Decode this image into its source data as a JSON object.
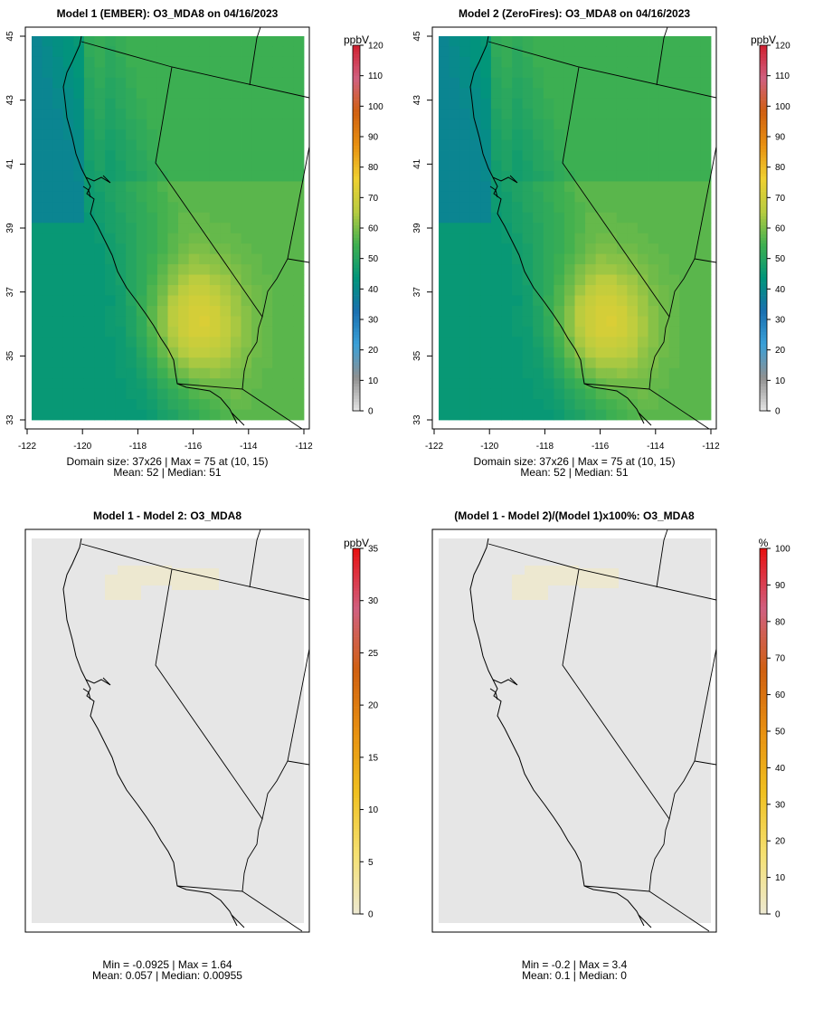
{
  "chart_data": [
    {
      "type": "heatmap",
      "title": "Model 1 (EMBER): O3_MDA8 on 04/16/2023",
      "x_ticks": [
        "-122",
        "-120",
        "-118",
        "-116",
        "-114",
        "-112"
      ],
      "y_ticks": [
        "33",
        "35",
        "37",
        "39",
        "41",
        "43",
        "45"
      ],
      "xlim": [
        -122,
        -112
      ],
      "ylim": [
        33,
        45
      ],
      "grid_size": [
        37,
        26
      ],
      "colorbar": {
        "unit": "ppbV",
        "ticks": [
          "0",
          "10",
          "20",
          "30",
          "40",
          "50",
          "60",
          "70",
          "80",
          "90",
          "100",
          "110",
          "120"
        ],
        "range": [
          0,
          120
        ]
      },
      "stats": [
        "Domain size: 37x26 | Max = 75 at (10, 15)",
        "Mean: 52 |  Median: 51"
      ],
      "field": {
        "background": 45,
        "peak": 75,
        "peak_location": [
          -116,
          36
        ]
      }
    },
    {
      "type": "heatmap",
      "title": "Model 2 (ZeroFires): O3_MDA8 on 04/16/2023",
      "x_ticks": [
        "-122",
        "-120",
        "-118",
        "-116",
        "-114",
        "-112"
      ],
      "y_ticks": [
        "33",
        "35",
        "37",
        "39",
        "41",
        "43",
        "45"
      ],
      "xlim": [
        -122,
        -112
      ],
      "ylim": [
        33,
        45
      ],
      "grid_size": [
        37,
        26
      ],
      "colorbar": {
        "unit": "ppbV",
        "ticks": [
          "0",
          "10",
          "20",
          "30",
          "40",
          "50",
          "60",
          "70",
          "80",
          "90",
          "100",
          "110",
          "120"
        ],
        "range": [
          0,
          120
        ]
      },
      "stats": [
        "Domain size: 37x26 | Max = 75 at (10, 15)",
        "Mean: 52 |  Median: 51"
      ],
      "field": {
        "background": 45,
        "peak": 75,
        "peak_location": [
          -116,
          36
        ]
      }
    },
    {
      "type": "heatmap",
      "title": "Model 1 - Model 2: O3_MDA8",
      "colorbar": {
        "unit": "ppbV",
        "ticks": [
          "0",
          "5",
          "10",
          "15",
          "20",
          "25",
          "30",
          "35"
        ],
        "range": [
          0,
          35
        ]
      },
      "stats": [
        "Min = -0.0925 | Max = 1.64",
        "Mean: 0.057 |  Median: 0.00955"
      ]
    },
    {
      "type": "heatmap",
      "title": "(Model 1 - Model 2)/(Model 1)x100%: O3_MDA8",
      "colorbar": {
        "unit": "%",
        "ticks": [
          "0",
          "10",
          "20",
          "30",
          "40",
          "50",
          "60",
          "70",
          "80",
          "90",
          "100"
        ],
        "range": [
          0,
          100
        ]
      },
      "stats": [
        "Min = -0.2 | Max = 3.4",
        "Mean: 0.1 |  Median: 0"
      ]
    }
  ],
  "colors": {
    "abs_scale": [
      "#e6e6e6",
      "#909090",
      "#3aa0d8",
      "#1a70b0",
      "#00957a",
      "#3fb050",
      "#b8cc40",
      "#f0d030",
      "#e89010",
      "#d06010",
      "#d06080",
      "#d02030"
    ],
    "diff_scale": [
      "#ede9d2",
      "#f5e070",
      "#f0c020",
      "#e89010",
      "#d06010",
      "#d06080",
      "#e81010"
    ],
    "background_grey": "#e6e6e6",
    "faint_patch": "#ede8d0"
  }
}
